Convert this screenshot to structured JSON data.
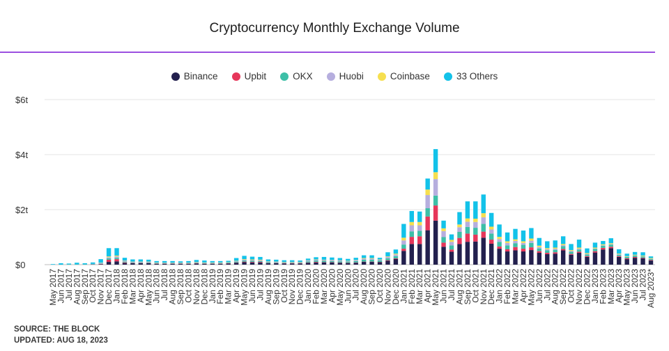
{
  "chart_data": {
    "type": "bar",
    "stacked": true,
    "title": "Cryptocurrency Monthly Exchange Volume",
    "ylabel": "",
    "xlabel": "",
    "ylim": [
      0,
      6
    ],
    "y_ticks": [
      0,
      2,
      4,
      6
    ],
    "y_tick_labels": [
      "$0",
      "$2t",
      "$4t",
      "$6t"
    ],
    "legend_placement": "top-center",
    "grid": true,
    "categories": [
      "May 2017",
      "Jun 2017",
      "Jul 2017",
      "Aug 2017",
      "Sep 2017",
      "Oct 2017",
      "Nov 2017",
      "Dec 2017",
      "Jan 2018",
      "Feb 2018",
      "Mar 2018",
      "Apr 2018",
      "May 2018",
      "Jun 2018",
      "Jul 2018",
      "Aug 2018",
      "Sep 2018",
      "Oct 2018",
      "Nov 2018",
      "Dec 2018",
      "Jan 2019",
      "Feb 2019",
      "Mar 2019",
      "Apr 2019",
      "May 2019",
      "Jun 2019",
      "Jul 2019",
      "Aug 2019",
      "Sep 2019",
      "Oct 2019",
      "Nov 2019",
      "Dec 2019",
      "Jan 2020",
      "Feb 2020",
      "Mar 2020",
      "Apr 2020",
      "May 2020",
      "Jun 2020",
      "Jul 2020",
      "Aug 2020",
      "Sep 2020",
      "Oct 2020",
      "Nov 2020",
      "Dec 2020",
      "Jan 2021",
      "Feb 2021",
      "Mar 2021",
      "Apr 2021",
      "May 2021",
      "Jun 2021",
      "Jul 2021",
      "Aug 2021",
      "Sep 2021",
      "Oct 2021",
      "Nov 2021",
      "Dec 2021",
      "Jan 2022",
      "Feb 2022",
      "Mar 2022",
      "Apr 2022",
      "May 2022",
      "Jun 2022",
      "Jul 2022",
      "Aug 2022",
      "Sep 2022",
      "Oct 2022",
      "Nov 2022",
      "Dec 2022",
      "Jan 2023",
      "Feb 2023",
      "Mar 2023",
      "Apr 2023",
      "May 2023",
      "Jun 2023",
      "Jul 2023",
      "Aug 2023*"
    ],
    "series": [
      {
        "name": "Binance",
        "color": "#23204e",
        "values": [
          0.0,
          0.0,
          0.0,
          0.0,
          0.0,
          0.01,
          0.02,
          0.1,
          0.12,
          0.06,
          0.05,
          0.05,
          0.05,
          0.03,
          0.03,
          0.03,
          0.03,
          0.03,
          0.04,
          0.03,
          0.03,
          0.03,
          0.04,
          0.07,
          0.09,
          0.08,
          0.08,
          0.05,
          0.05,
          0.04,
          0.04,
          0.04,
          0.07,
          0.08,
          0.08,
          0.08,
          0.07,
          0.06,
          0.07,
          0.1,
          0.1,
          0.09,
          0.14,
          0.21,
          0.5,
          0.75,
          0.75,
          1.25,
          1.6,
          0.65,
          0.47,
          0.75,
          0.83,
          0.84,
          0.98,
          0.76,
          0.58,
          0.48,
          0.52,
          0.48,
          0.53,
          0.43,
          0.38,
          0.4,
          0.52,
          0.36,
          0.43,
          0.28,
          0.44,
          0.55,
          0.6,
          0.28,
          0.2,
          0.25,
          0.23,
          0.15
        ]
      },
      {
        "name": "Upbit",
        "color": "#e6365a",
        "values": [
          0.0,
          0.0,
          0.0,
          0.0,
          0.0,
          0.0,
          0.01,
          0.08,
          0.08,
          0.02,
          0.01,
          0.01,
          0.01,
          0.01,
          0.01,
          0.01,
          0.01,
          0.01,
          0.01,
          0.01,
          0.01,
          0.01,
          0.01,
          0.01,
          0.02,
          0.02,
          0.02,
          0.01,
          0.01,
          0.01,
          0.01,
          0.01,
          0.01,
          0.02,
          0.01,
          0.01,
          0.01,
          0.01,
          0.01,
          0.01,
          0.01,
          0.01,
          0.02,
          0.02,
          0.08,
          0.26,
          0.28,
          0.5,
          0.55,
          0.15,
          0.08,
          0.22,
          0.3,
          0.25,
          0.22,
          0.15,
          0.08,
          0.08,
          0.12,
          0.1,
          0.1,
          0.06,
          0.05,
          0.05,
          0.05,
          0.03,
          0.04,
          0.03,
          0.05,
          0.06,
          0.05,
          0.03,
          0.03,
          0.03,
          0.02,
          0.02
        ]
      },
      {
        "name": "OKX",
        "color": "#3dbfa7",
        "values": [
          0.0,
          0.0,
          0.01,
          0.01,
          0.01,
          0.01,
          0.01,
          0.05,
          0.05,
          0.03,
          0.02,
          0.02,
          0.02,
          0.02,
          0.01,
          0.01,
          0.01,
          0.01,
          0.02,
          0.02,
          0.02,
          0.02,
          0.02,
          0.03,
          0.04,
          0.04,
          0.03,
          0.03,
          0.02,
          0.02,
          0.02,
          0.02,
          0.04,
          0.05,
          0.05,
          0.04,
          0.04,
          0.04,
          0.05,
          0.07,
          0.07,
          0.05,
          0.07,
          0.08,
          0.15,
          0.2,
          0.2,
          0.3,
          0.36,
          0.2,
          0.15,
          0.22,
          0.24,
          0.25,
          0.28,
          0.22,
          0.17,
          0.14,
          0.14,
          0.14,
          0.16,
          0.1,
          0.09,
          0.09,
          0.1,
          0.08,
          0.08,
          0.06,
          0.08,
          0.08,
          0.08,
          0.05,
          0.05,
          0.05,
          0.05,
          0.04
        ]
      },
      {
        "name": "Huobi",
        "color": "#b6aede",
        "values": [
          0.0,
          0.0,
          0.0,
          0.0,
          0.0,
          0.01,
          0.02,
          0.04,
          0.05,
          0.03,
          0.02,
          0.02,
          0.02,
          0.01,
          0.01,
          0.01,
          0.01,
          0.01,
          0.02,
          0.01,
          0.01,
          0.01,
          0.01,
          0.02,
          0.03,
          0.03,
          0.03,
          0.02,
          0.02,
          0.02,
          0.02,
          0.02,
          0.03,
          0.03,
          0.03,
          0.03,
          0.03,
          0.02,
          0.03,
          0.04,
          0.04,
          0.03,
          0.05,
          0.06,
          0.15,
          0.22,
          0.2,
          0.48,
          0.6,
          0.22,
          0.13,
          0.17,
          0.19,
          0.21,
          0.24,
          0.15,
          0.1,
          0.09,
          0.08,
          0.07,
          0.08,
          0.05,
          0.04,
          0.04,
          0.04,
          0.03,
          0.03,
          0.02,
          0.02,
          0.02,
          0.02,
          0.02,
          0.01,
          0.01,
          0.01,
          0.01
        ]
      },
      {
        "name": "Coinbase",
        "color": "#f6df4f",
        "values": [
          0.0,
          0.0,
          0.0,
          0.0,
          0.0,
          0.0,
          0.01,
          0.03,
          0.03,
          0.01,
          0.01,
          0.01,
          0.01,
          0.01,
          0.01,
          0.01,
          0.01,
          0.01,
          0.01,
          0.01,
          0.01,
          0.01,
          0.01,
          0.01,
          0.02,
          0.02,
          0.02,
          0.01,
          0.01,
          0.01,
          0.01,
          0.01,
          0.01,
          0.01,
          0.01,
          0.01,
          0.01,
          0.01,
          0.01,
          0.02,
          0.02,
          0.01,
          0.02,
          0.03,
          0.1,
          0.12,
          0.12,
          0.2,
          0.25,
          0.1,
          0.07,
          0.1,
          0.12,
          0.12,
          0.15,
          0.1,
          0.08,
          0.06,
          0.06,
          0.06,
          0.08,
          0.05,
          0.04,
          0.04,
          0.04,
          0.03,
          0.04,
          0.03,
          0.03,
          0.03,
          0.03,
          0.02,
          0.02,
          0.02,
          0.02,
          0.02
        ]
      },
      {
        "name": "33 Others",
        "color": "#13c2e9",
        "values": [
          0.02,
          0.05,
          0.03,
          0.06,
          0.04,
          0.05,
          0.13,
          0.3,
          0.27,
          0.1,
          0.08,
          0.08,
          0.07,
          0.05,
          0.06,
          0.06,
          0.05,
          0.06,
          0.07,
          0.07,
          0.05,
          0.05,
          0.05,
          0.1,
          0.12,
          0.1,
          0.1,
          0.07,
          0.07,
          0.06,
          0.06,
          0.05,
          0.06,
          0.08,
          0.1,
          0.09,
          0.08,
          0.07,
          0.08,
          0.1,
          0.1,
          0.06,
          0.15,
          0.15,
          0.5,
          0.4,
          0.38,
          0.4,
          0.84,
          0.28,
          0.2,
          0.45,
          0.62,
          0.63,
          0.68,
          0.5,
          0.45,
          0.32,
          0.38,
          0.39,
          0.38,
          0.28,
          0.25,
          0.26,
          0.28,
          0.22,
          0.29,
          0.17,
          0.18,
          0.12,
          0.18,
          0.16,
          0.09,
          0.1,
          0.12,
          0.06
        ]
      }
    ]
  },
  "footer": {
    "source": "SOURCE: THE BLOCK",
    "updated": "UPDATED: AUG 18, 2023"
  }
}
